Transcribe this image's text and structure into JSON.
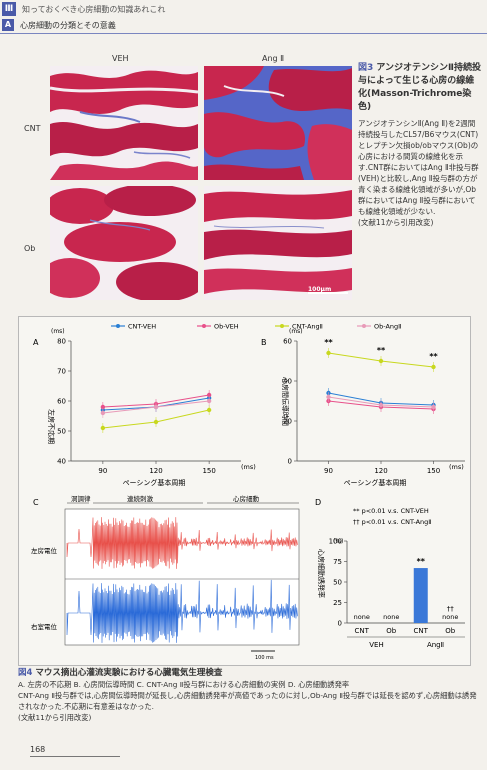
{
  "header": {
    "chapter": "Ⅲ",
    "chapter_title": "知っておくべき心房細動の知識あれこれ",
    "section": "A",
    "section_title": "心房細動の分類とその意義"
  },
  "figure3": {
    "col_labels": [
      "VEH",
      "Ang Ⅱ"
    ],
    "row_labels": [
      "CNT",
      "Ob"
    ],
    "scale_label": "100μm",
    "fig_no": "図3",
    "title": "アンジオテンシンⅡ持続投与によって生じる心房の線維化(Masson-Trichrome染色)",
    "body": "アンジオテンシンⅡ(Ang Ⅱ)を2週間持続投与したCL57/B6マウス(CNT)とレプチン欠損ob/obマウス(Ob)の心房における間質の線維化を示す.CNT群においてはAng Ⅱ非投与群(VEH)と比較し,Ang Ⅱ投与群の方が青く染まる線維化領域が多いが,Ob群においてはAng Ⅱ投与群においても線維化領域が少ない.",
    "source": "(文献11から引用改変)",
    "colors": {
      "muscle": "#c8264e",
      "fibrosis": "#5566c8",
      "space": "#f4eef2"
    }
  },
  "legend": [
    {
      "label": "CNT-VEH",
      "color": "#2a7fd4"
    },
    {
      "label": "Ob-VEH",
      "color": "#e8508a"
    },
    {
      "label": "CNT-AngⅡ",
      "color": "#c8d81e"
    },
    {
      "label": "Ob-AngⅡ",
      "color": "#e89ab8"
    }
  ],
  "chart_data": [
    {
      "panel": "A",
      "type": "line",
      "ylabel": "左房不応期",
      "yunit": "(ms)",
      "xlabel": "ペーシング基本周期",
      "xunit": "(ms)",
      "x": [
        90,
        120,
        150
      ],
      "ylim": [
        40,
        80
      ],
      "yticks": [
        40,
        50,
        60,
        70,
        80
      ],
      "series": [
        {
          "name": "CNT-VEH",
          "values": [
            57,
            58,
            61
          ]
        },
        {
          "name": "Ob-VEH",
          "values": [
            58,
            59,
            62
          ]
        },
        {
          "name": "CNT-AngⅡ",
          "values": [
            51,
            53,
            57
          ]
        },
        {
          "name": "Ob-AngⅡ",
          "values": [
            56,
            58,
            60
          ]
        }
      ]
    },
    {
      "panel": "B",
      "type": "line",
      "ylabel": "心房間伝導時間",
      "yunit": "(ms)",
      "xlabel": "ペーシング基本周期",
      "xunit": "(ms)",
      "x": [
        90,
        120,
        150
      ],
      "ylim": [
        0,
        60
      ],
      "yticks": [
        0,
        20,
        40,
        60
      ],
      "series": [
        {
          "name": "CNT-VEH",
          "values": [
            34,
            29,
            28
          ]
        },
        {
          "name": "Ob-VEH",
          "values": [
            30,
            27,
            26
          ]
        },
        {
          "name": "CNT-AngⅡ",
          "values": [
            54,
            50,
            47
          ]
        },
        {
          "name": "Ob-AngⅡ",
          "values": [
            32,
            28,
            27
          ]
        }
      ],
      "annotations": [
        "**",
        "**",
        "**"
      ]
    },
    {
      "panel": "D",
      "type": "bar",
      "ylabel": "心房細動誘発率",
      "yunit": "(%)",
      "ylim": [
        0,
        100
      ],
      "yticks": [
        0,
        25,
        50,
        75,
        100
      ],
      "categories": [
        "CNT",
        "Ob",
        "CNT",
        "Ob"
      ],
      "groups": [
        "VEH",
        "AngⅡ"
      ],
      "values": [
        0,
        0,
        67,
        0
      ],
      "bar_labels": [
        "none",
        "none",
        "**",
        "none"
      ],
      "marks": [
        "",
        "",
        "",
        "††"
      ],
      "notes": [
        "** p<0.01 v.s. CNT-VEH",
        "†† p<0.01 v.s. CNT-AngⅡ"
      ]
    }
  ],
  "panelC": {
    "label": "C",
    "phases": [
      "洞調律",
      "連続刺激",
      "心房細動"
    ],
    "tracks": [
      "左房電位",
      "右室電位"
    ],
    "scale": "100 ms"
  },
  "figure4": {
    "fig_no": "図4",
    "title": "マウス摘出心灌流実験における心臓電気生理検査",
    "line1": "A. 左房の不応期 B. 心房間伝導時間 C. CNT-Ang Ⅱ投与群における心房細動の実例 D. 心房細動誘発率",
    "line2": "CNT-Ang Ⅱ投与群では,心房間伝導時間が延長し,心房細動誘発率が高値であったのに対し,Ob-Ang Ⅱ投与群では延長を認めず,心房細動は誘発されなかった.不応期に有意差はなかった.",
    "source": "(文献11から引用改変)"
  },
  "page_number": "168"
}
